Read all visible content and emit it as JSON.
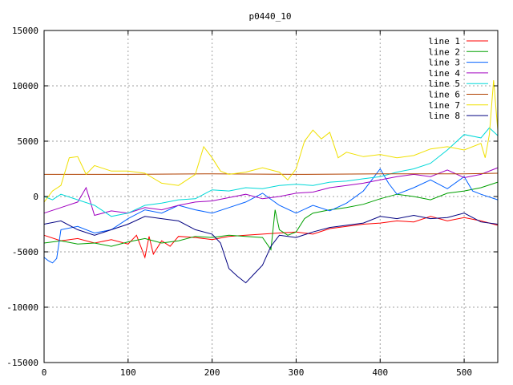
{
  "chart_data": {
    "type": "line",
    "title": "p0440_10",
    "xlabel": "",
    "ylabel": "",
    "xlim": [
      0,
      540
    ],
    "ylim": [
      -15000,
      15000
    ],
    "x_ticks": [
      0,
      100,
      200,
      300,
      400,
      500
    ],
    "y_ticks": [
      -15000,
      -10000,
      -5000,
      0,
      5000,
      10000,
      15000
    ],
    "grid": true,
    "legend_position": "top-right",
    "series": [
      {
        "name": "line 1",
        "color": "#ff0000",
        "x": [
          0,
          20,
          40,
          60,
          80,
          100,
          110,
          120,
          125,
          130,
          140,
          150,
          160,
          180,
          200,
          220,
          240,
          260,
          280,
          300,
          320,
          340,
          360,
          380,
          400,
          420,
          440,
          460,
          480,
          500,
          520,
          540
        ],
        "y": [
          -3500,
          -4000,
          -3800,
          -4200,
          -3900,
          -4300,
          -3500,
          -5500,
          -3600,
          -5200,
          -4000,
          -4500,
          -3600,
          -3700,
          -3900,
          -3600,
          -3500,
          -3400,
          -3300,
          -3200,
          -3400,
          -2900,
          -2700,
          -2500,
          -2400,
          -2200,
          -2300,
          -1800,
          -2200,
          -1900,
          -2200,
          -2600
        ]
      },
      {
        "name": "line 2",
        "color": "#00a000",
        "x": [
          0,
          20,
          40,
          60,
          80,
          100,
          120,
          140,
          160,
          180,
          200,
          220,
          240,
          260,
          270,
          275,
          280,
          290,
          300,
          310,
          320,
          340,
          360,
          380,
          400,
          420,
          440,
          460,
          480,
          500,
          520,
          540
        ],
        "y": [
          -4200,
          -4000,
          -4300,
          -4200,
          -4500,
          -4100,
          -3800,
          -4200,
          -4000,
          -3600,
          -3700,
          -3500,
          -3600,
          -3700,
          -4800,
          -1200,
          -3000,
          -3500,
          -3200,
          -2000,
          -1500,
          -1200,
          -1000,
          -700,
          -200,
          200,
          0,
          -300,
          300,
          500,
          800,
          1300
        ]
      },
      {
        "name": "line 3",
        "color": "#0060ff",
        "x": [
          0,
          5,
          10,
          15,
          20,
          40,
          60,
          80,
          100,
          120,
          140,
          160,
          180,
          200,
          220,
          240,
          260,
          280,
          300,
          320,
          340,
          360,
          380,
          400,
          410,
          420,
          440,
          460,
          480,
          500,
          510,
          520,
          540
        ],
        "y": [
          -5500,
          -5800,
          -6000,
          -5600,
          -3000,
          -2700,
          -3300,
          -3000,
          -2000,
          -1200,
          -1500,
          -800,
          -1200,
          -1500,
          -1000,
          -500,
          300,
          -800,
          -1500,
          -800,
          -1300,
          -600,
          500,
          2500,
          1200,
          200,
          800,
          1500,
          700,
          1800,
          500,
          200,
          -300
        ]
      },
      {
        "name": "line 4",
        "color": "#a000c0",
        "x": [
          0,
          20,
          40,
          50,
          60,
          80,
          100,
          120,
          140,
          160,
          180,
          200,
          220,
          240,
          260,
          280,
          300,
          320,
          340,
          360,
          380,
          400,
          420,
          440,
          460,
          480,
          500,
          520,
          540
        ],
        "y": [
          -1500,
          -1000,
          -500,
          800,
          -1700,
          -1300,
          -1500,
          -1000,
          -1200,
          -800,
          -500,
          -400,
          -100,
          200,
          -200,
          0,
          300,
          400,
          800,
          1000,
          1200,
          1500,
          1800,
          2000,
          1800,
          2400,
          1700,
          2000,
          2600
        ]
      },
      {
        "name": "line 5",
        "color": "#00d8d8",
        "x": [
          0,
          10,
          20,
          40,
          60,
          80,
          100,
          120,
          140,
          160,
          180,
          200,
          220,
          240,
          260,
          280,
          300,
          320,
          340,
          360,
          380,
          400,
          420,
          440,
          460,
          480,
          500,
          520,
          530,
          540
        ],
        "y": [
          0,
          -300,
          200,
          -300,
          -800,
          -1800,
          -1500,
          -800,
          -600,
          -300,
          -200,
          600,
          500,
          800,
          700,
          1000,
          1100,
          1000,
          1300,
          1400,
          1600,
          1800,
          2200,
          2500,
          3000,
          4200,
          5600,
          5300,
          6200,
          5500
        ]
      },
      {
        "name": "line 6",
        "color": "#b04000",
        "x": [
          0,
          100,
          200,
          300,
          400,
          500,
          540
        ],
        "y": [
          2000,
          2000,
          2050,
          2000,
          2050,
          2050,
          2100
        ]
      },
      {
        "name": "line 7",
        "color": "#f0e000",
        "x": [
          0,
          10,
          20,
          30,
          40,
          50,
          60,
          80,
          100,
          120,
          140,
          160,
          180,
          190,
          200,
          210,
          220,
          240,
          260,
          280,
          290,
          300,
          310,
          320,
          330,
          340,
          350,
          360,
          380,
          400,
          420,
          440,
          460,
          480,
          500,
          520,
          525,
          530,
          535,
          540
        ],
        "y": [
          -500,
          500,
          1000,
          3500,
          3600,
          2000,
          2800,
          2300,
          2300,
          2100,
          1200,
          1000,
          2000,
          4500,
          3500,
          2300,
          2000,
          2200,
          2600,
          2200,
          1500,
          2500,
          5000,
          6000,
          5200,
          5800,
          3500,
          4000,
          3600,
          3800,
          3500,
          3700,
          4300,
          4500,
          4200,
          4800,
          3500,
          5600,
          10500,
          6000
        ]
      },
      {
        "name": "line 8",
        "color": "#000080",
        "x": [
          0,
          20,
          40,
          60,
          80,
          100,
          120,
          140,
          160,
          180,
          200,
          210,
          220,
          230,
          240,
          250,
          260,
          270,
          280,
          300,
          320,
          340,
          360,
          380,
          400,
          420,
          440,
          460,
          480,
          500,
          520,
          540
        ],
        "y": [
          -2500,
          -2200,
          -3000,
          -3500,
          -3000,
          -2500,
          -1800,
          -2000,
          -2200,
          -3000,
          -3400,
          -4200,
          -6500,
          -7200,
          -7800,
          -7000,
          -6200,
          -4500,
          -3500,
          -3700,
          -3200,
          -2800,
          -2600,
          -2400,
          -1800,
          -2000,
          -1700,
          -2000,
          -1900,
          -1500,
          -2300,
          -2500
        ]
      }
    ]
  }
}
